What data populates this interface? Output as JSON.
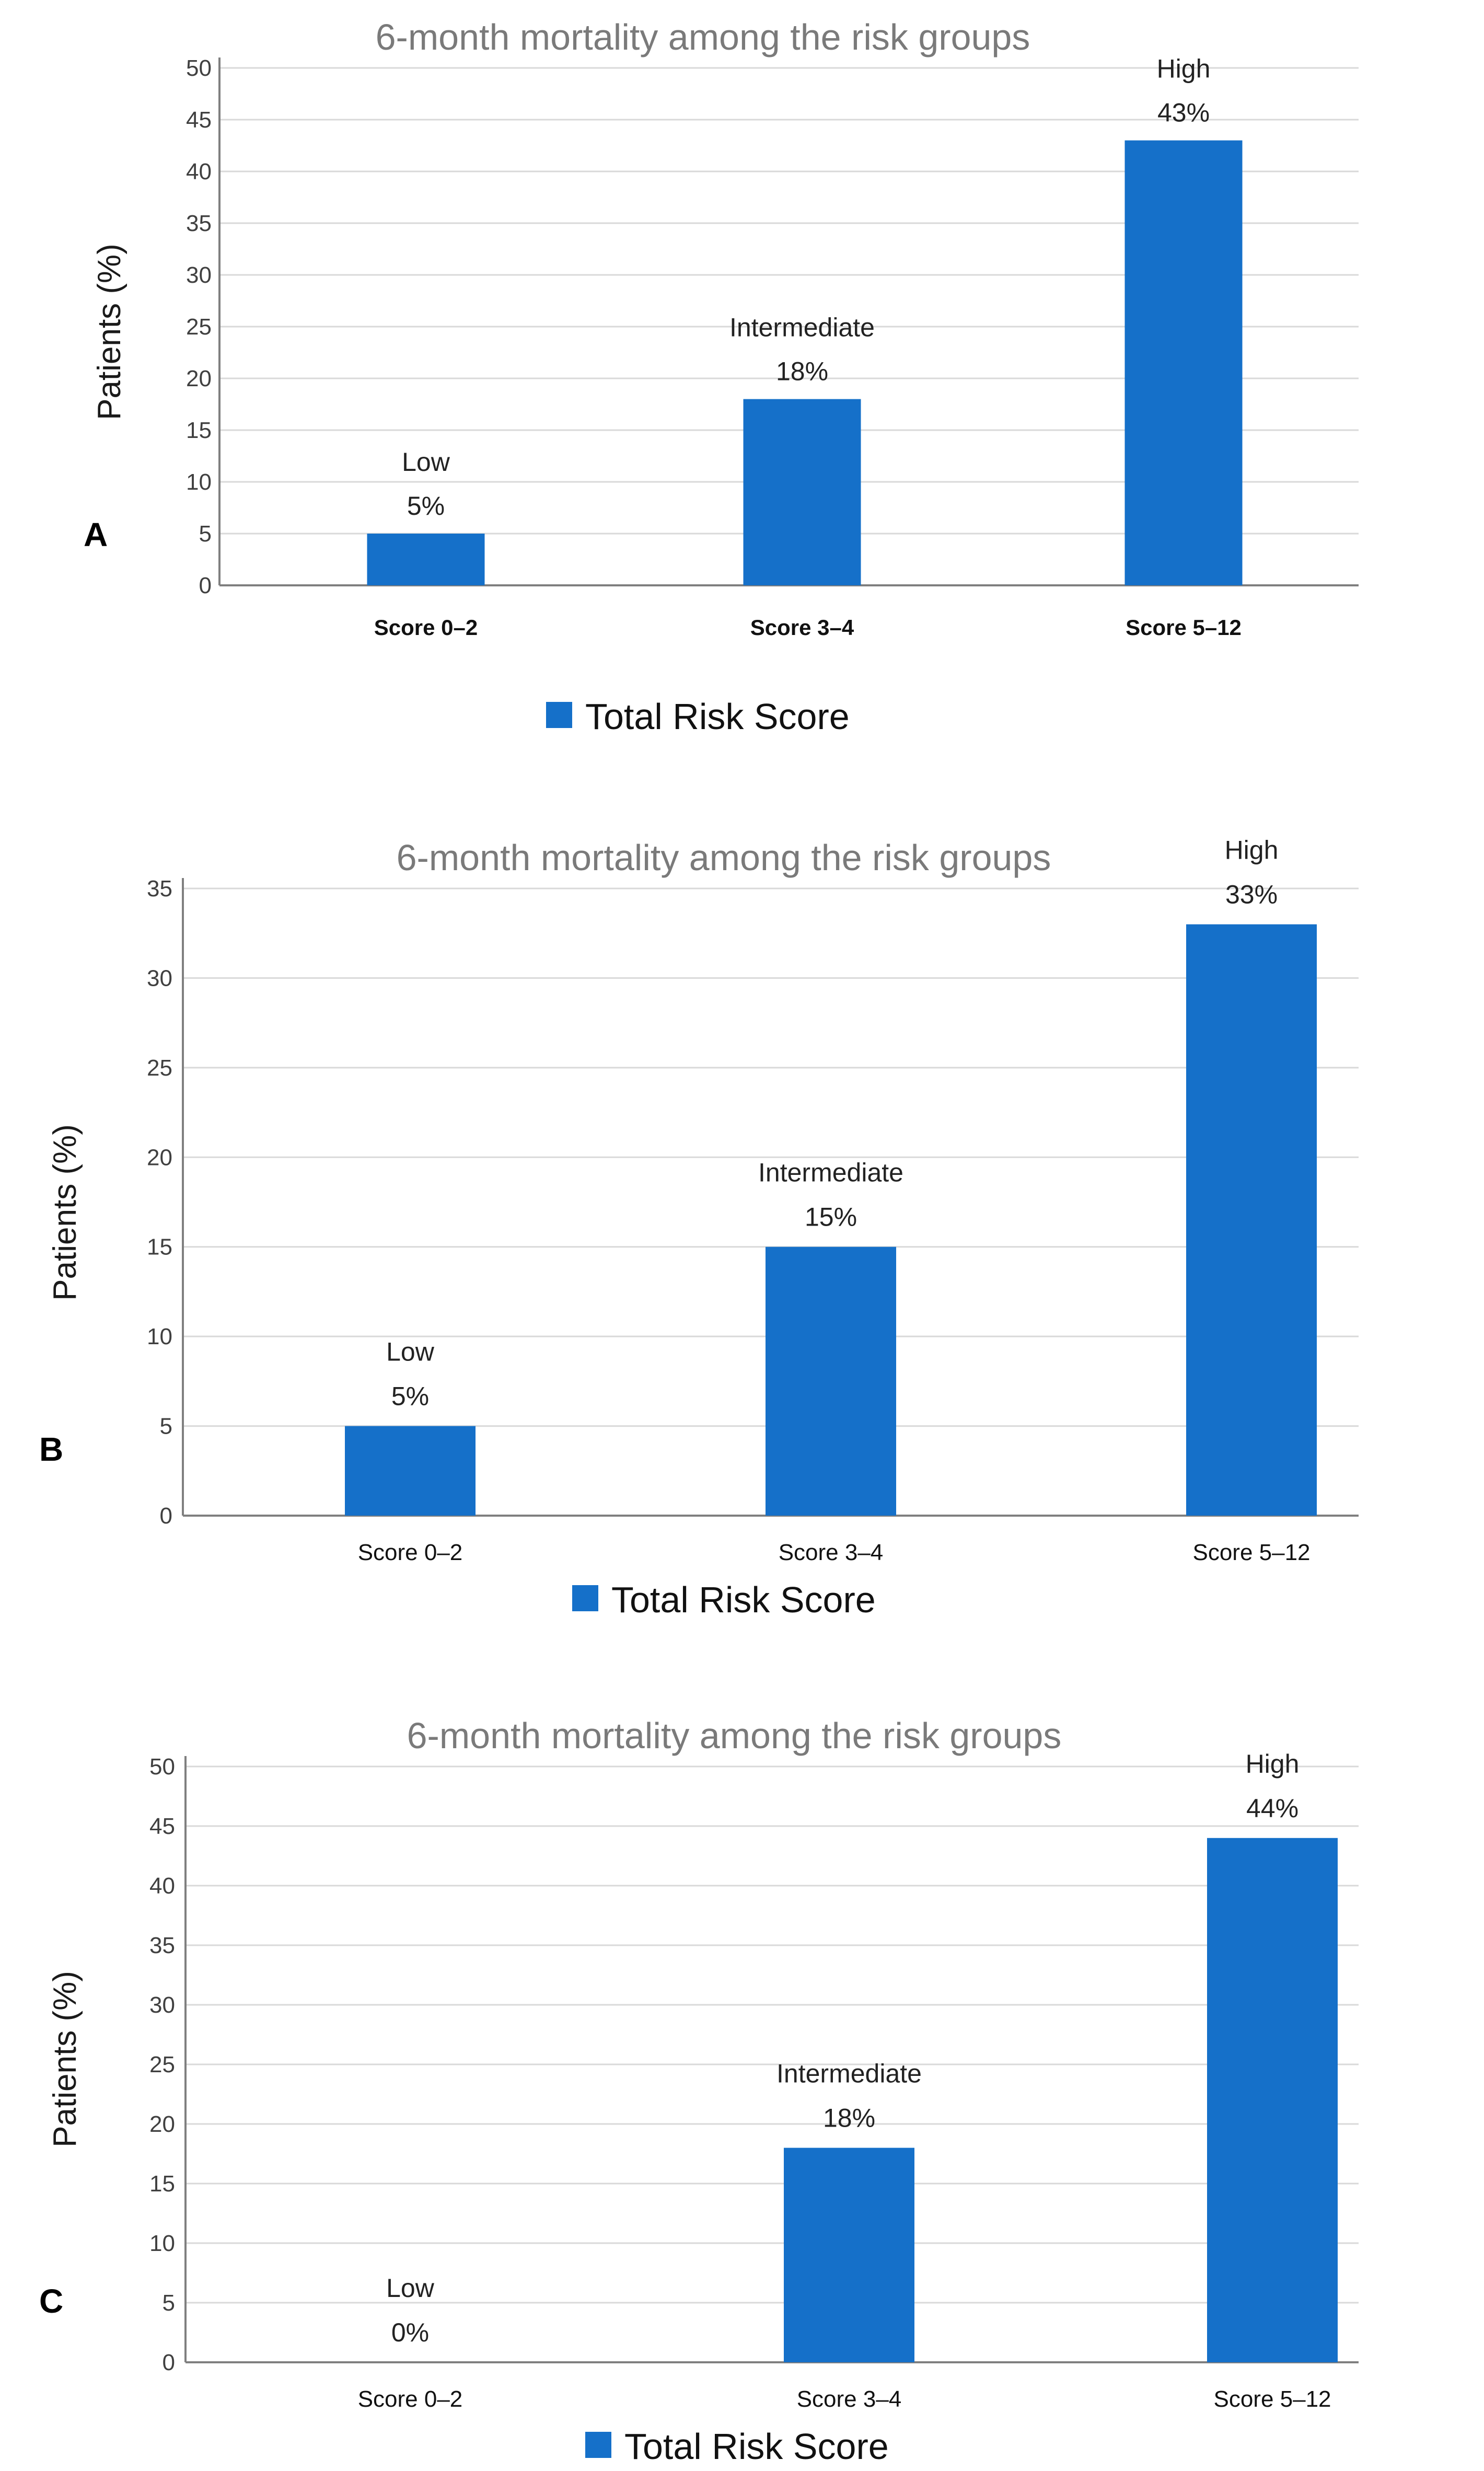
{
  "chart_data": [
    {
      "panel": "A",
      "type": "bar",
      "title": "6-month mortality among the risk groups",
      "ylabel": "Patients (%)",
      "xlabel": "",
      "categories": [
        "Score 0–2",
        "Score 3–4",
        "Score 5–12"
      ],
      "series": [
        {
          "name": "Total Risk Score",
          "values": [
            5,
            18,
            43
          ]
        }
      ],
      "bar_labels": [
        {
          "group": "Low",
          "value": "5%"
        },
        {
          "group": "Intermediate",
          "value": "18%"
        },
        {
          "group": "High",
          "value": "43%"
        }
      ],
      "ylim": [
        0,
        50
      ],
      "yticks": [
        0,
        5,
        10,
        15,
        20,
        25,
        30,
        35,
        40,
        45,
        50
      ],
      "legend": "bottom",
      "grid": true,
      "color": "#1570C9"
    },
    {
      "panel": "B",
      "type": "bar",
      "title": "6-month mortality among the risk groups",
      "ylabel": "Patients (%)",
      "xlabel": "",
      "categories": [
        "Score 0–2",
        "Score 3–4",
        "Score  5–12"
      ],
      "series": [
        {
          "name": "Total Risk Score",
          "values": [
            5,
            15,
            33
          ]
        }
      ],
      "bar_labels": [
        {
          "group": "Low",
          "value": "5%"
        },
        {
          "group": "Intermediate",
          "value": "15%"
        },
        {
          "group": "High",
          "value": "33%"
        }
      ],
      "ylim": [
        0,
        35
      ],
      "yticks": [
        0,
        5,
        10,
        15,
        20,
        25,
        30,
        35
      ],
      "legend": "bottom",
      "grid": true,
      "color": "#1570C9"
    },
    {
      "panel": "C",
      "type": "bar",
      "title": "6-month mortality among the risk groups",
      "ylabel": "Patients (%)",
      "xlabel": "",
      "categories": [
        "Score 0–2",
        "Score 3–4",
        "Score  5–12"
      ],
      "series": [
        {
          "name": "Total Risk Score",
          "values": [
            0,
            18,
            44
          ]
        }
      ],
      "bar_labels": [
        {
          "group": "Low",
          "value": "0%"
        },
        {
          "group": "Intermediate",
          "value": "18%"
        },
        {
          "group": "High",
          "value": "44%"
        }
      ],
      "ylim": [
        0,
        50
      ],
      "yticks": [
        0,
        5,
        10,
        15,
        20,
        25,
        30,
        35,
        40,
        45,
        50
      ],
      "legend": "bottom",
      "grid": true,
      "color": "#1570C9"
    }
  ]
}
